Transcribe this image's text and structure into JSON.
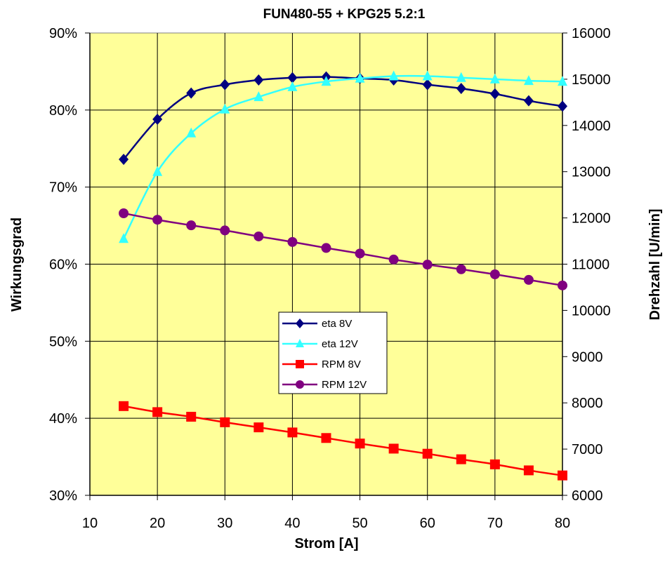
{
  "chart_data": {
    "type": "line",
    "title": "FUN480-55 + KPG25 5.2:1",
    "xlabel": "Strom [A]",
    "ylabel_left": "Wirkungsgrad",
    "ylabel_right": "Drehzahl [U/min]",
    "x": [
      15,
      20,
      25,
      30,
      35,
      40,
      45,
      50,
      55,
      60,
      65,
      70,
      75,
      80
    ],
    "xlim": [
      10,
      80
    ],
    "xticks": [
      10,
      20,
      30,
      40,
      50,
      60,
      70,
      80
    ],
    "ylim_left": [
      0.3,
      0.9
    ],
    "yticks_left": [
      "30%",
      "40%",
      "50%",
      "60%",
      "70%",
      "80%",
      "90%"
    ],
    "ylim_right": [
      6000,
      16000
    ],
    "yticks_right": [
      "6000",
      "7000",
      "8000",
      "9000",
      "10000",
      "11000",
      "12000",
      "13000",
      "14000",
      "15000",
      "16000"
    ],
    "grid": true,
    "legend_placement": "center",
    "plot_background": "#ffff99",
    "series": [
      {
        "name": "eta 8V",
        "axis": "left",
        "color": "#000080",
        "marker": "diamond",
        "values": [
          0.736,
          0.788,
          0.822,
          0.833,
          0.839,
          0.842,
          0.843,
          0.841,
          0.839,
          0.833,
          0.828,
          0.821,
          0.812,
          0.805
        ]
      },
      {
        "name": "eta 12V",
        "axis": "left",
        "color": "#33ffff",
        "marker": "triangle",
        "values": [
          0.633,
          0.72,
          0.77,
          0.801,
          0.817,
          0.83,
          0.837,
          0.841,
          0.844,
          0.844,
          0.842,
          0.84,
          0.838,
          0.837
        ]
      },
      {
        "name": "RPM 8V",
        "axis": "right",
        "color": "#ff0000",
        "marker": "square",
        "values": [
          7930,
          7800,
          7700,
          7580,
          7470,
          7360,
          7240,
          7120,
          7010,
          6900,
          6780,
          6670,
          6540,
          6430
        ]
      },
      {
        "name": "RPM 12V",
        "axis": "right",
        "color": "#800080",
        "marker": "circle",
        "values": [
          12100,
          11960,
          11840,
          11730,
          11600,
          11480,
          11350,
          11230,
          11100,
          10990,
          10890,
          10780,
          10660,
          10540
        ]
      }
    ]
  }
}
